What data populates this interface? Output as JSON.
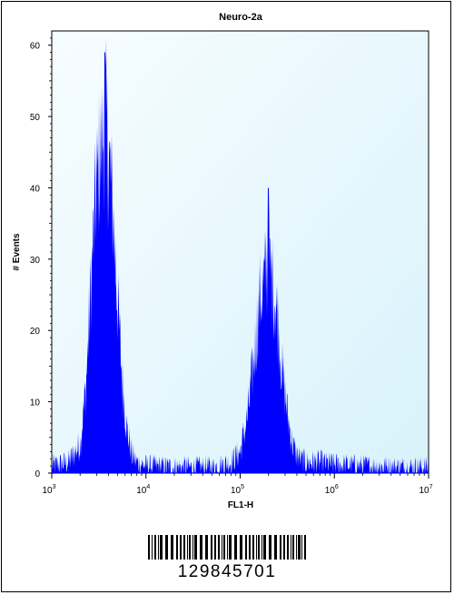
{
  "chart_data": {
    "type": "area",
    "title": "Neuro-2a",
    "xlabel": "FL1-H",
    "ylabel": "# Events",
    "x_scale": "log",
    "xlim": [
      1000,
      10000000
    ],
    "ylim": [
      0,
      62
    ],
    "y_ticks": [
      "0",
      "10",
      "20",
      "30",
      "40",
      "50",
      "60"
    ],
    "y_tick_values": [
      0,
      10,
      20,
      30,
      40,
      50,
      60
    ],
    "x_ticks": [
      {
        "base": "10",
        "exp": "3",
        "value": 1000
      },
      {
        "base": "10",
        "exp": "4",
        "value": 10000
      },
      {
        "base": "10",
        "exp": "5",
        "value": 100000
      },
      {
        "base": "10",
        "exp": "6",
        "value": 1000000
      },
      {
        "base": "10",
        "exp": "7",
        "value": 10000000
      }
    ],
    "series": [
      {
        "color": "#0000ff",
        "x": [
          1000,
          1500,
          2000,
          2300,
          2600,
          2900,
          3200,
          3500,
          3700,
          4000,
          4500,
          5000,
          5600,
          6300,
          7100,
          8000,
          10000,
          20000,
          50000,
          80000,
          100000,
          120000,
          140000,
          160000,
          180000,
          200000,
          220000,
          250000,
          280000,
          320000,
          360000,
          400000,
          450000,
          500000,
          700000,
          1000000,
          2000000,
          5000000,
          10000000
        ],
        "values": [
          1,
          1.5,
          4,
          12,
          26,
          38,
          44,
          47,
          50,
          45,
          36,
          24,
          13,
          6,
          2.5,
          1.5,
          1,
          0.8,
          0.8,
          1.5,
          3,
          8,
          16,
          24,
          27,
          29,
          27,
          22,
          14,
          8,
          4,
          2.5,
          1.8,
          1.5,
          1.5,
          1.2,
          1,
          0.8,
          0.8
        ]
      }
    ],
    "peaks": [
      {
        "x": 3650,
        "y": 59
      },
      {
        "x": 200000,
        "y": 40
      }
    ],
    "grid": false,
    "plot_background": "#f2fbfe"
  },
  "barcode": {
    "number": "129845701"
  }
}
